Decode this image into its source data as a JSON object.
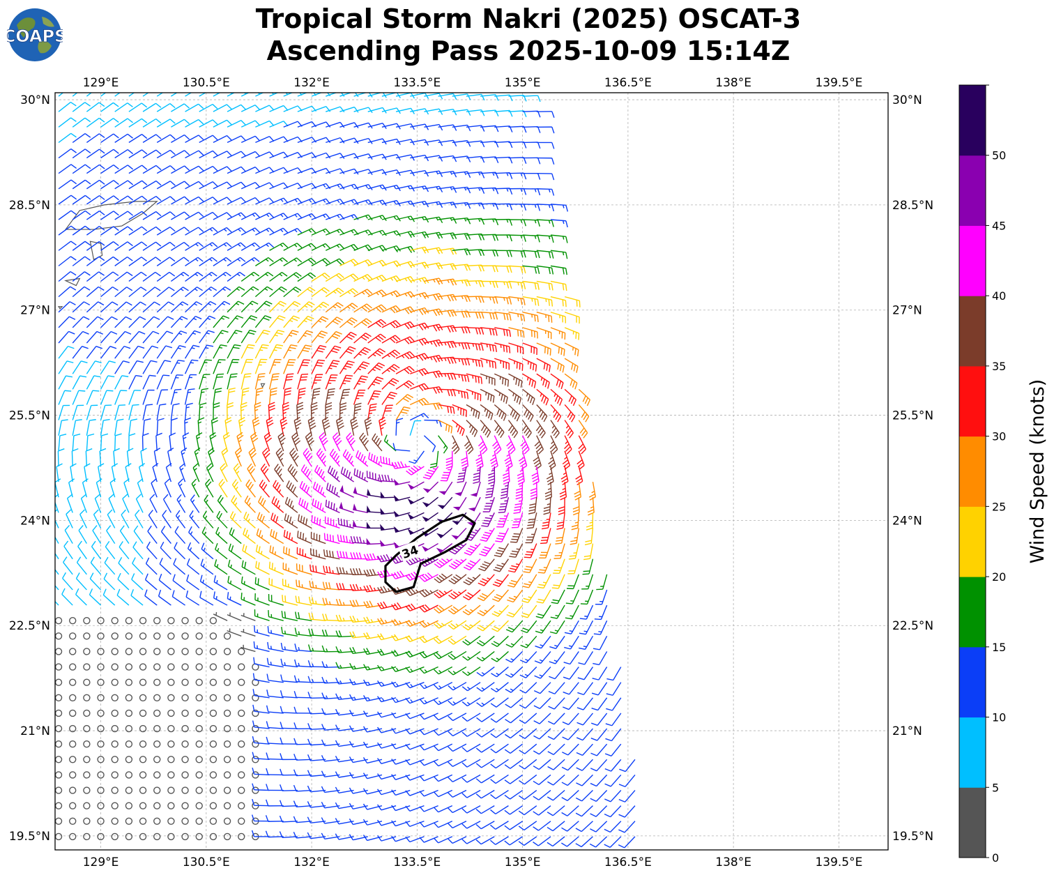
{
  "title": {
    "line1": "Tropical Storm Nakri (2025) OSCAT-3",
    "line2": "Ascending Pass 2025-10-09 15:14Z"
  },
  "logo": {
    "text": "COAPS"
  },
  "map": {
    "lon_range": [
      128.35,
      140.2
    ],
    "lat_range": [
      19.3,
      30.1
    ],
    "lon_ticks": [
      "129°E",
      "130.5°E",
      "132°E",
      "133.5°E",
      "135°E",
      "136.5°E",
      "138°E",
      "139.5°E"
    ],
    "lon_tick_values": [
      129,
      130.5,
      132,
      133.5,
      135,
      136.5,
      138,
      139.5
    ],
    "lat_ticks": [
      "30°N",
      "28.5°N",
      "27°N",
      "25.5°N",
      "24°N",
      "22.5°N",
      "21°N",
      "19.5°N"
    ],
    "lat_tick_values": [
      30,
      28.5,
      27,
      25.5,
      24,
      22.5,
      21,
      19.5
    ],
    "gridlines": true,
    "storm_center": {
      "lon": 133.5,
      "lat": 25.2
    },
    "contour_label": "34",
    "swath_east_edge": {
      "north": {
        "lon": 135.2,
        "lat": 30.0
      },
      "south": {
        "lon": 136.8,
        "lat": 19.4
      }
    }
  },
  "colorbar": {
    "label": "Wind Speed (knots)",
    "tick_labels": [
      "0",
      "5",
      "10",
      "15",
      "20",
      "25",
      "30",
      "35",
      "40",
      "45",
      "50"
    ],
    "bounds": [
      0,
      5,
      10,
      15,
      20,
      25,
      30,
      35,
      40,
      45,
      50,
      55
    ],
    "colors": [
      "#555555",
      "#00bfff",
      "#0b3ef7",
      "#009100",
      "#ffd200",
      "#ff8c00",
      "#ff0f0f",
      "#7b3c2a",
      "#ff00ff",
      "#8a00b0",
      "#29005e"
    ]
  },
  "islands": {
    "amami_oshima": [
      [
        128.5,
        28.15
      ],
      [
        128.7,
        28.42
      ],
      [
        129.05,
        28.5
      ],
      [
        129.5,
        28.55
      ],
      [
        129.8,
        28.55
      ],
      [
        129.6,
        28.38
      ],
      [
        129.3,
        28.2
      ],
      [
        128.9,
        28.15
      ]
    ],
    "tokunoshima": [
      [
        128.85,
        27.98
      ],
      [
        129.0,
        27.95
      ],
      [
        129.02,
        27.78
      ],
      [
        128.9,
        27.72
      ]
    ],
    "okinoerabu": [
      [
        128.5,
        27.42
      ],
      [
        128.7,
        27.45
      ],
      [
        128.65,
        27.35
      ]
    ],
    "yoron": [
      [
        128.4,
        27.05
      ],
      [
        128.45,
        27.05
      ],
      [
        128.42,
        27.02
      ]
    ],
    "kitadaito": [
      [
        131.28,
        25.95
      ],
      [
        131.33,
        25.95
      ],
      [
        131.3,
        25.9
      ]
    ]
  }
}
